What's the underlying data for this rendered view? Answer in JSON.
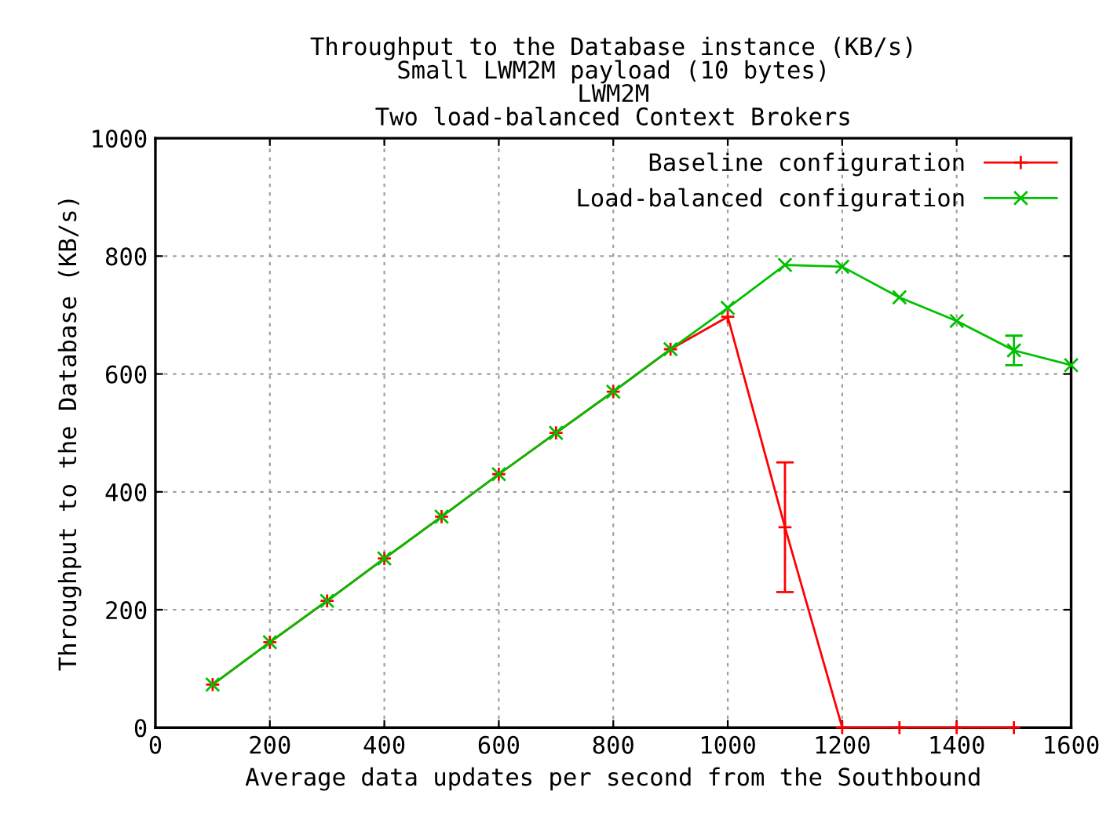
{
  "chart_data": {
    "type": "line",
    "title": "Throughput to the Database instance (KB/s)\nSmall LWM2M payload (10 bytes)\nLWM2M\nTwo load-balanced Context Brokers",
    "xlabel": "Average data updates per second from the Southbound",
    "ylabel": "Throughput to the Database (KB/s)",
    "x": [
      100,
      200,
      300,
      400,
      500,
      600,
      700,
      800,
      900,
      1000,
      1100,
      1200,
      1300,
      1400,
      1500,
      1600
    ],
    "series": [
      {
        "name": "Baseline configuration",
        "color": "#ff0000",
        "marker": "plus",
        "values": [
          73,
          145,
          215,
          287,
          358,
          430,
          500,
          570,
          642,
          697,
          340,
          0,
          0,
          0,
          0,
          null
        ],
        "errors": [
          null,
          null,
          null,
          null,
          null,
          null,
          null,
          null,
          null,
          null,
          [
            230,
            450
          ],
          null,
          null,
          null,
          null,
          null
        ]
      },
      {
        "name": "Load-balanced configuration",
        "color": "#00c000",
        "marker": "cross",
        "values": [
          73,
          145,
          215,
          287,
          358,
          430,
          500,
          570,
          642,
          712,
          785,
          782,
          730,
          690,
          640,
          615
        ],
        "errors": [
          null,
          null,
          null,
          null,
          null,
          null,
          null,
          null,
          null,
          null,
          null,
          null,
          null,
          null,
          [
            615,
            665
          ],
          null
        ]
      }
    ],
    "xlim": [
      0,
      1600
    ],
    "xticks": [
      0,
      200,
      400,
      600,
      800,
      1000,
      1200,
      1400,
      1600
    ],
    "ylim": [
      0,
      1000
    ],
    "yticks": [
      0,
      200,
      400,
      600,
      800,
      1000
    ],
    "grid": true,
    "legend": "top right"
  }
}
